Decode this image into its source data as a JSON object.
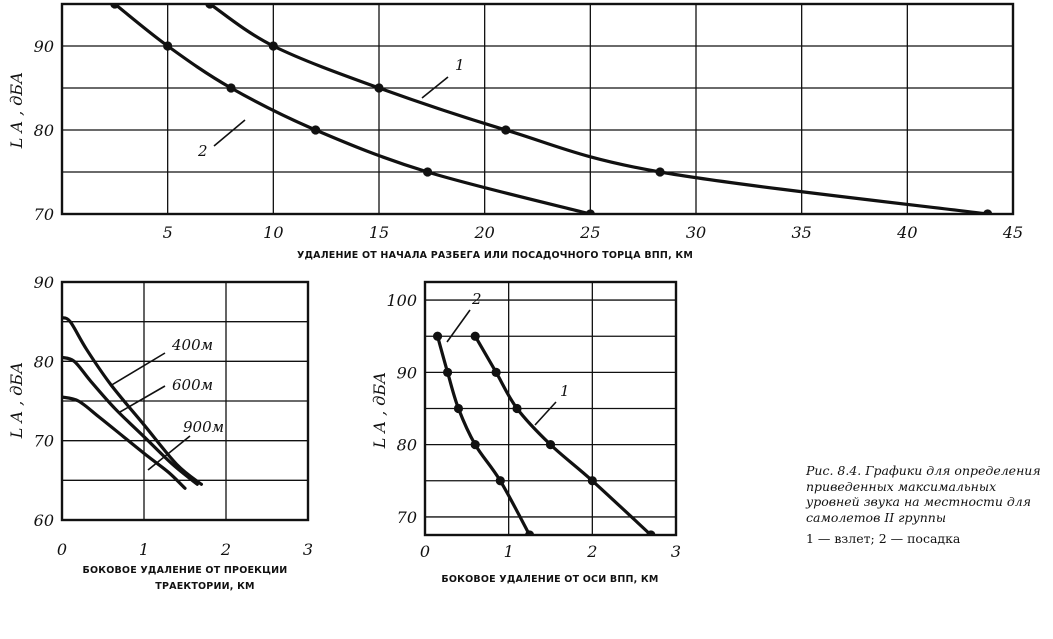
{
  "chart_data": [
    {
      "type": "line",
      "ylabel": "L A , дБА",
      "xlabel": "УДАЛЕНИЕ ОТ НАЧАЛА РАЗБЕГА ИЛИ ПОСАДОЧНОГО ТОРЦА ВПП, КМ",
      "xlim": [
        0,
        45
      ],
      "ylim": [
        70,
        95
      ],
      "x_ticks": [
        "5",
        "10",
        "15",
        "20",
        "25",
        "30",
        "35",
        "40",
        "45"
      ],
      "y_ticks": [
        "70",
        "80",
        "90"
      ],
      "grid": true,
      "series": [
        {
          "name": "1",
          "x": [
            7,
            10,
            15,
            21,
            28.3,
            43.8
          ],
          "y": [
            95,
            90,
            85,
            80,
            75,
            70
          ]
        },
        {
          "name": "2",
          "x": [
            2.5,
            5,
            8,
            12,
            17.3,
            25
          ],
          "y": [
            95,
            90,
            85,
            80,
            75,
            70
          ]
        }
      ]
    },
    {
      "type": "line",
      "ylabel": "L A , дБА",
      "xlabel": [
        "БОКОВОЕ УДАЛЕНИЕ ОТ ПРОЕКЦИИ",
        "ТРАЕКТОРИИ, КМ"
      ],
      "xlim": [
        0,
        3
      ],
      "ylim": [
        60,
        90
      ],
      "x_ticks": [
        "0",
        "1",
        "2",
        "3"
      ],
      "y_ticks": [
        "60",
        "70",
        "80",
        "90"
      ],
      "grid": true,
      "series": [
        {
          "name": "400м",
          "x": [
            0,
            0.1,
            0.3,
            0.6,
            1.0,
            1.4,
            1.7
          ],
          "y": [
            85.5,
            85,
            81.5,
            77,
            72,
            67,
            64.5
          ]
        },
        {
          "name": "600м",
          "x": [
            0,
            0.15,
            0.35,
            0.65,
            1.0,
            1.35,
            1.65
          ],
          "y": [
            80.5,
            80,
            77.5,
            74,
            70.5,
            67,
            64.5
          ]
        },
        {
          "name": "900м",
          "x": [
            0,
            0.2,
            0.45,
            0.75,
            1.05,
            1.3,
            1.5
          ],
          "y": [
            75.5,
            75,
            73,
            70.5,
            68,
            66,
            64
          ]
        }
      ]
    },
    {
      "type": "line",
      "ylabel": "L A , дБА",
      "xlabel": "БОКОВОЕ УДАЛЕНИЕ ОТ ОСИ ВПП, КМ",
      "xlim": [
        0,
        3
      ],
      "ylim": [
        67.5,
        102.5
      ],
      "x_ticks": [
        "0",
        "1",
        "2",
        "3"
      ],
      "y_ticks": [
        "70",
        "80",
        "90",
        "100"
      ],
      "grid": true,
      "series": [
        {
          "name": "1",
          "x": [
            0.6,
            0.85,
            1.1,
            1.5,
            2.0,
            2.7
          ],
          "y": [
            95,
            90,
            85,
            80,
            75,
            67.5
          ]
        },
        {
          "name": "2",
          "x": [
            0.15,
            0.27,
            0.4,
            0.6,
            0.9,
            1.25
          ],
          "y": [
            95,
            90,
            85,
            80,
            75,
            67.5
          ]
        }
      ]
    }
  ],
  "caption": {
    "text": "Рис. 8.4. Графики для определения приведенных максимальных уровней звука на местности для самолетов II группы",
    "legend": "1 — взлет; 2 — посадка"
  }
}
